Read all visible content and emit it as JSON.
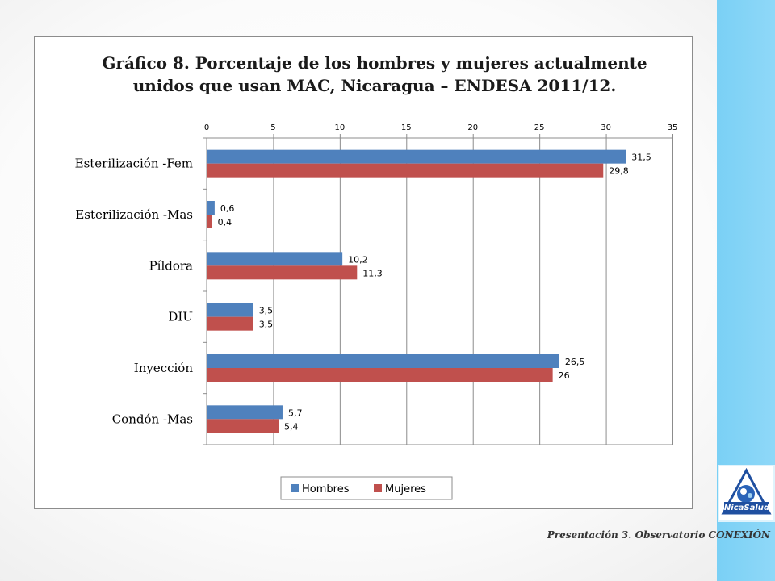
{
  "chart_data": {
    "type": "bar",
    "orientation": "horizontal",
    "title": "Gráfico 8. Porcentaje de los hombres y mujeres actualmente unidos que usan MAC, Nicaragua – ENDESA 2011/12.",
    "title_lines": [
      "Gráfico 8. Porcentaje de los hombres y mujeres actualmente",
      "unidos que usan MAC, Nicaragua – ENDESA 2011/12."
    ],
    "categories": [
      "Esterilización -Fem",
      "Esterilización -Mas",
      "Píldora",
      "DIU",
      "Inyección",
      "Condón -Mas"
    ],
    "series": [
      {
        "name": "Hombres",
        "color": "#4f81bd",
        "values": [
          31.5,
          0.6,
          10.2,
          3.5,
          26.5,
          5.7
        ],
        "labels": [
          "31,5",
          "0,6",
          "10,2",
          "3,5",
          "26,5",
          "5,7"
        ]
      },
      {
        "name": "Mujeres",
        "color": "#c0504d",
        "values": [
          29.8,
          0.4,
          11.3,
          3.5,
          26,
          5.4
        ],
        "labels": [
          "29,8",
          "0,4",
          "11,3",
          "3,5",
          "26",
          "5,4"
        ]
      }
    ],
    "xlim": [
      0,
      35
    ],
    "xticks": [
      0,
      5,
      10,
      15,
      20,
      25,
      30,
      35
    ],
    "x_axis_position": "top",
    "grid": true,
    "legend_position": "bottom"
  },
  "logo": {
    "text": "NicaSalud"
  },
  "footer": {
    "credit": "Presentación 3. Observatorio CONEXIÓN"
  }
}
